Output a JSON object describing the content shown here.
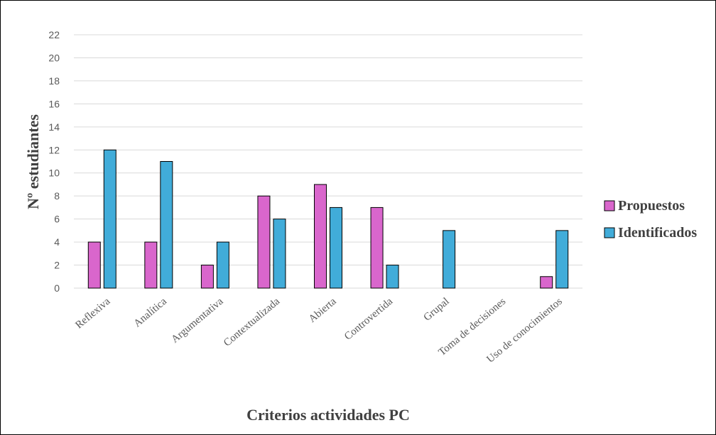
{
  "chart_data": {
    "type": "bar",
    "title": "",
    "xlabel": "Criterios actividades PC",
    "ylabel": "Nº estudiantes",
    "ylim": [
      0,
      22
    ],
    "yticks": [
      0,
      2,
      4,
      6,
      8,
      10,
      12,
      14,
      16,
      18,
      20,
      22
    ],
    "grid": true,
    "legend_position": "right",
    "categories": [
      "Reflexiva",
      "Analítica",
      "Argumentativa",
      "Contextualizada",
      "Abierta",
      "Controvertida",
      "Grupal",
      "Toma de decisiones",
      "Uso de conocimientos"
    ],
    "series": [
      {
        "name": "Propuestos",
        "color": "#d966cc",
        "values": [
          4,
          4,
          2,
          8,
          9,
          7,
          0,
          0,
          1
        ]
      },
      {
        "name": "Identificados",
        "color": "#41acd9",
        "values": [
          12,
          11,
          4,
          6,
          7,
          2,
          5,
          0,
          5
        ]
      }
    ]
  }
}
